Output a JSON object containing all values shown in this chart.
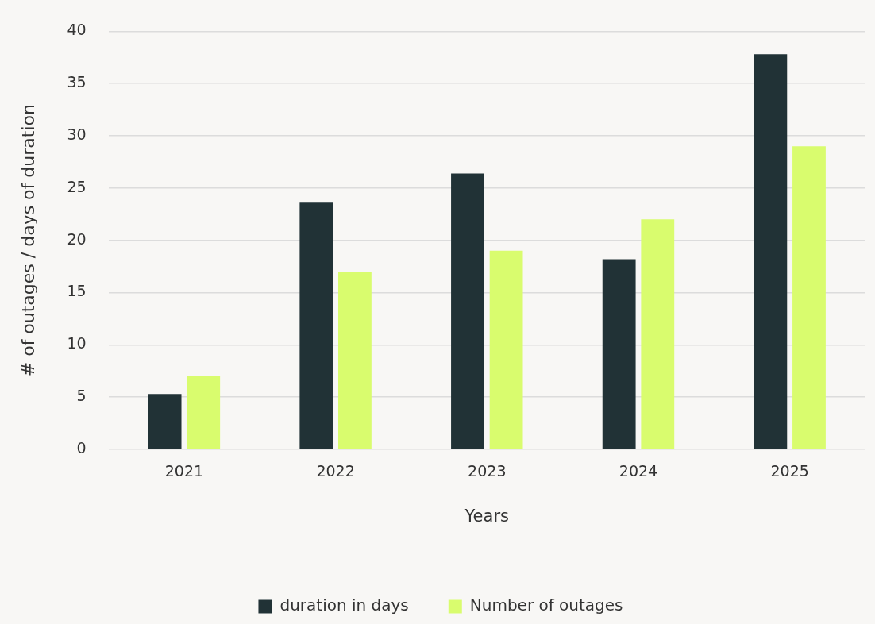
{
  "chart_data": {
    "type": "bar",
    "xlabel": "Years",
    "ylabel": "# of outages / days of duration",
    "categories": [
      "2021",
      "2022",
      "2023",
      "2024",
      "2025"
    ],
    "series": [
      {
        "name": "duration in days",
        "color": "#213236",
        "values": [
          5.3,
          23.6,
          26.4,
          18.2,
          37.8
        ]
      },
      {
        "name": "Number of outages",
        "color": "#d9fc6e",
        "values": [
          7,
          17,
          19,
          22,
          29
        ]
      }
    ],
    "ylim": [
      0,
      40
    ],
    "yticks": [
      0,
      5,
      10,
      15,
      20,
      25,
      30,
      35,
      40
    ],
    "grid": "y",
    "legend": "bottom"
  }
}
